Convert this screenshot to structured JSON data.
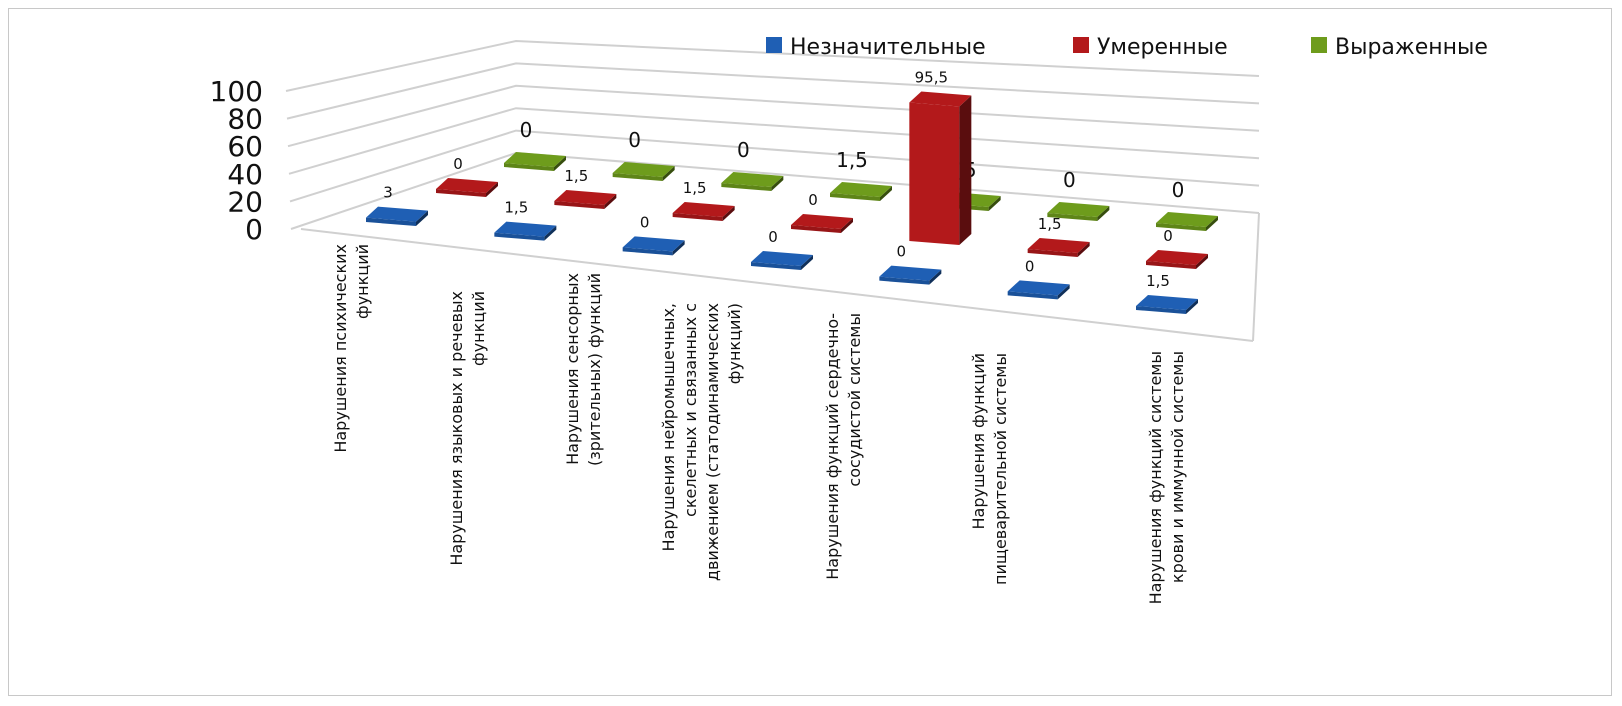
{
  "chart_data": {
    "type": "bar3d",
    "categories": [
      [
        "Нарушения психических",
        "функций"
      ],
      [
        "Нарушения языковых и речевых",
        "функций"
      ],
      [
        "Нарушения сенсорных",
        "(зрительных) функций"
      ],
      [
        "Нарушения нейромышечных,",
        "скелетных и связанных с",
        "движением (статодинамических",
        "функций)"
      ],
      [
        "Нарушения функций сердечно-",
        "сосудистой системы"
      ],
      [
        "Нарушения функций",
        "пищеварительной системы"
      ],
      [
        "Нарушения функций системы",
        "крови и иммунной системы"
      ]
    ],
    "series": [
      {
        "name": "Незначительные",
        "color": "#1f5fb4",
        "values": [
          3,
          1.5,
          0,
          0,
          0,
          0,
          1.5
        ],
        "labels": [
          "3",
          "1,5",
          "0",
          "0",
          "0",
          "0",
          "1,5"
        ]
      },
      {
        "name": "Умеренные",
        "color": "#b3191b",
        "values": [
          0,
          1.5,
          1.5,
          0,
          95.5,
          1.5,
          0
        ],
        "labels": [
          "0",
          "1,5",
          "1,5",
          "0",
          "95,5",
          "1,5",
          "0"
        ]
      },
      {
        "name": "Выраженные",
        "color": "#6e9c1c",
        "values": [
          0,
          0,
          0,
          1.5,
          1.5,
          0,
          0
        ],
        "labels": [
          "0",
          "0",
          "0",
          "1,5",
          "1,5",
          "0",
          "0"
        ]
      }
    ],
    "y_ticks": [
      "0",
      "20",
      "40",
      "60",
      "80",
      "100"
    ],
    "ylim": [
      0,
      100
    ],
    "grid": true,
    "legend": "top-right"
  }
}
